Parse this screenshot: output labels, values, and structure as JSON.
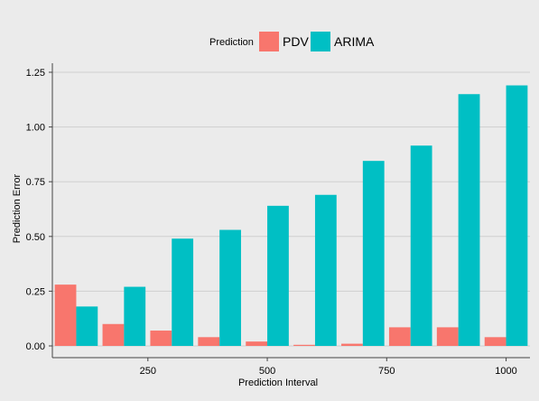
{
  "chart_data": {
    "type": "bar",
    "title": "",
    "xlabel": "Prediction Interval",
    "ylabel": "Prediction Error",
    "legend": {
      "title": "Prediction",
      "position": "top"
    },
    "x": [
      100,
      200,
      300,
      400,
      500,
      600,
      700,
      800,
      900,
      1000
    ],
    "xticks": [
      250,
      500,
      750,
      1000
    ],
    "xtick_labels": [
      "250",
      "500",
      "750",
      "1000"
    ],
    "xlim": [
      50,
      1050
    ],
    "ylim": [
      0,
      1.25
    ],
    "yticks": [
      0,
      0.25,
      0.5,
      0.75,
      1.0,
      1.25
    ],
    "ytick_labels": [
      "0.00",
      "0.25",
      "0.50",
      "0.75",
      "1.00",
      "1.25"
    ],
    "grid": true,
    "series": [
      {
        "name": "PDV",
        "color": "#f8766d",
        "values": [
          0.28,
          0.1,
          0.07,
          0.04,
          0.02,
          0.005,
          0.01,
          0.085,
          0.085,
          0.04
        ]
      },
      {
        "name": "ARIMA",
        "color": "#00bfc4",
        "values": [
          0.18,
          0.27,
          0.49,
          0.53,
          0.64,
          0.69,
          0.845,
          0.915,
          1.15,
          1.19
        ]
      }
    ]
  }
}
